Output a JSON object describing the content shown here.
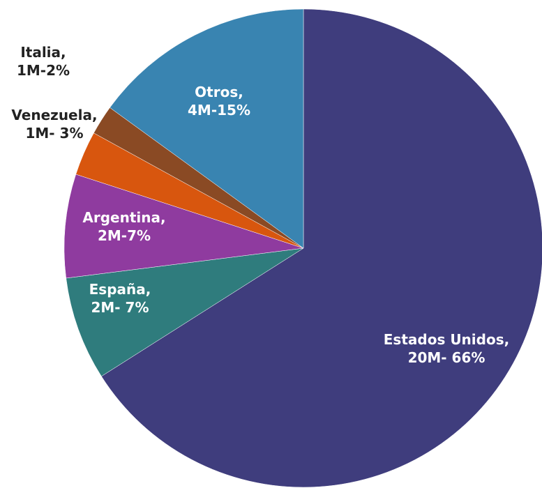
{
  "chart_data": {
    "type": "pie",
    "categories": [
      "Estados Unidos",
      "España",
      "Argentina",
      "Venezuela",
      "Italia",
      "Otros"
    ],
    "values": [
      66,
      7,
      7,
      3,
      2,
      15
    ],
    "value_labels": [
      "20M- 66%",
      "2M- 7%",
      "2M-7%",
      "1M- 3%",
      "1M-2%",
      "4M-15%"
    ],
    "label_separator": ",",
    "colors": [
      "#3f3d7d",
      "#2f7c7d",
      "#8f3b9f",
      "#d8560e",
      "#8a4a24",
      "#3984b1"
    ]
  }
}
